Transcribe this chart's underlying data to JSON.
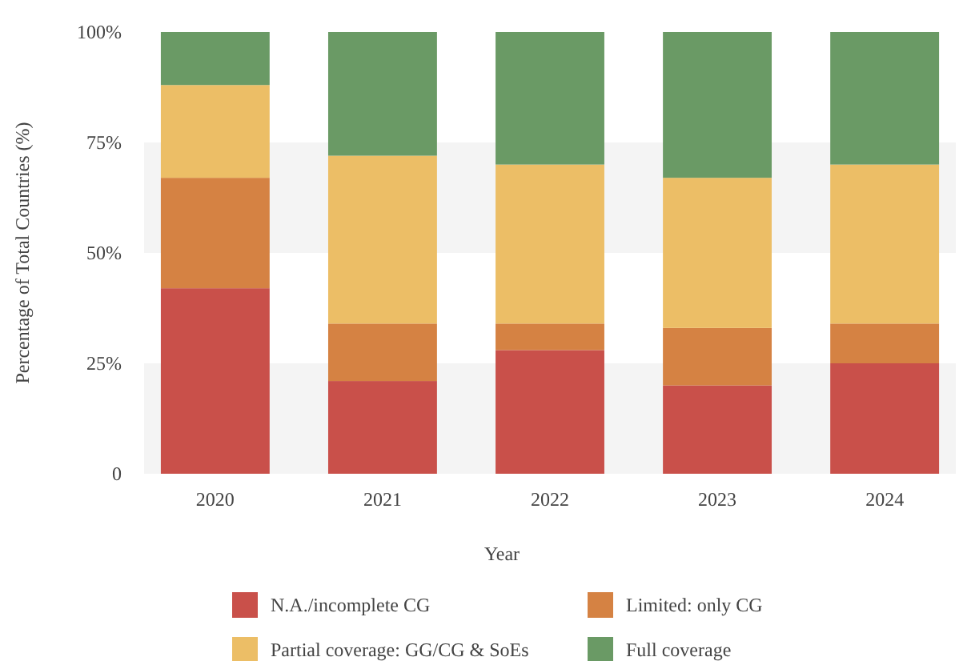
{
  "chart_data": {
    "type": "bar",
    "stacked": true,
    "xlabel": "Year",
    "ylabel": "Percentage of Total Countries (%)",
    "categories": [
      "2020",
      "2021",
      "2022",
      "2023",
      "2024"
    ],
    "series": [
      {
        "name": "N.A./incomplete CG",
        "color": "#c9504a",
        "values": [
          42,
          21,
          28,
          20,
          25
        ]
      },
      {
        "name": "Limited: only CG",
        "color": "#d58243",
        "values": [
          25,
          13,
          6,
          13,
          9
        ]
      },
      {
        "name": "Partial coverage: GG/CG & SoEs",
        "color": "#ecbe66",
        "values": [
          21,
          38,
          36,
          34,
          36
        ]
      },
      {
        "name": "Full coverage",
        "color": "#6a9a65",
        "values": [
          12,
          28,
          30,
          33,
          30
        ]
      }
    ],
    "ylim": [
      0,
      100
    ],
    "yticks": [
      {
        "value": 0,
        "label": "0"
      },
      {
        "value": 25,
        "label": "25%"
      },
      {
        "value": 50,
        "label": "50%"
      },
      {
        "value": 75,
        "label": "75%"
      },
      {
        "value": 100,
        "label": "100%"
      }
    ],
    "bands": [
      {
        "axis": "y",
        "from": 0,
        "to": 25,
        "color": "#f4f4f4"
      },
      {
        "axis": "y",
        "from": 50,
        "to": 75,
        "color": "#f4f4f4"
      }
    ],
    "grid": false,
    "legend": "bottom"
  }
}
